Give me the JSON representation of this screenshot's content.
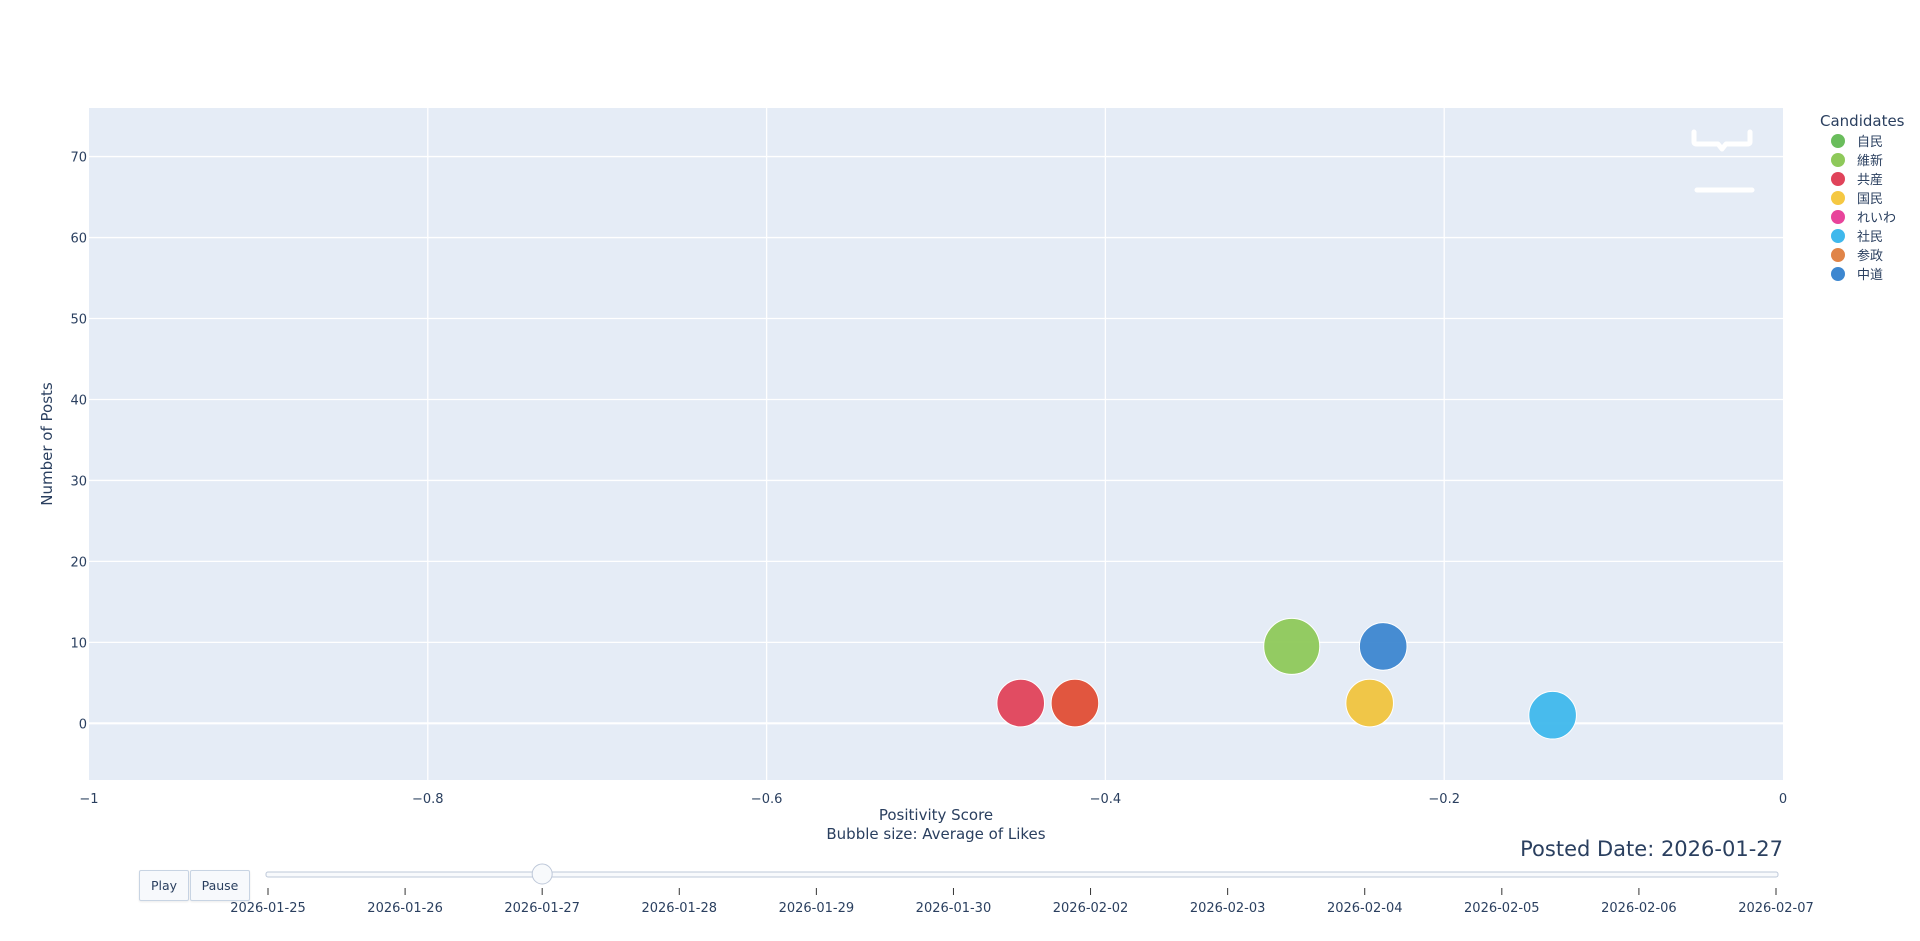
{
  "chart_data": {
    "type": "scatter",
    "subtype": "bubble",
    "xlabel": "Positivity Score",
    "ylabel": "Number of Posts",
    "xlabel_note": "Bubble size: Average of Likes",
    "xlim": [
      -1,
      0
    ],
    "ylim": [
      -7,
      76
    ],
    "xticks": [
      -1,
      -0.8,
      -0.6,
      -0.4,
      -0.2,
      0
    ],
    "xtick_labels": [
      "−1",
      "−0.8",
      "−0.6",
      "−0.4",
      "−0.2",
      "0"
    ],
    "yticks": [
      0,
      10,
      20,
      30,
      40,
      50,
      60,
      70
    ],
    "ytick_labels": [
      "0",
      "10",
      "20",
      "30",
      "40",
      "50",
      "60",
      "70"
    ],
    "grid": true,
    "legend": {
      "title": "Candidates",
      "placement": "right",
      "entries": [
        {
          "name": "自民",
          "color": "#6abd5c"
        },
        {
          "name": "維新",
          "color": "#8ec95a"
        },
        {
          "name": "共産",
          "color": "#e0435a"
        },
        {
          "name": "国民",
          "color": "#f5c842"
        },
        {
          "name": "れいわ",
          "color": "#e8449b"
        },
        {
          "name": "社民",
          "color": "#3fb8ec"
        },
        {
          "name": "参政",
          "color": "#e08448"
        },
        {
          "name": "中道",
          "color": "#3d87d0"
        }
      ]
    },
    "points": [
      {
        "series": "共産",
        "x": -0.45,
        "y": 2.5,
        "size": 0.85,
        "color": "#e0435a"
      },
      {
        "series": "参政",
        "x": -0.418,
        "y": 2.5,
        "size": 0.85,
        "color": "#e04e35"
      },
      {
        "series": "維新",
        "x": -0.29,
        "y": 9.5,
        "size": 1.0,
        "color": "#8ec95a"
      },
      {
        "series": "中道",
        "x": -0.236,
        "y": 9.5,
        "size": 0.85,
        "color": "#3d87d0"
      },
      {
        "series": "国民",
        "x": -0.244,
        "y": 2.5,
        "size": 0.85,
        "color": "#f0c43e"
      },
      {
        "series": "社民",
        "x": -0.136,
        "y": 1.0,
        "size": 0.85,
        "color": "#3fb8ec"
      }
    ],
    "animation": {
      "current_label": "Posted Date: 2026-01-27",
      "current_index": 2,
      "frames": [
        "2026-01-25",
        "2026-01-26",
        "2026-01-27",
        "2026-01-28",
        "2026-01-29",
        "2026-01-30",
        "2026-02-02",
        "2026-02-03",
        "2026-02-04",
        "2026-02-05",
        "2026-02-06",
        "2026-02-07"
      ],
      "play_label": "Play",
      "pause_label": "Pause"
    }
  }
}
